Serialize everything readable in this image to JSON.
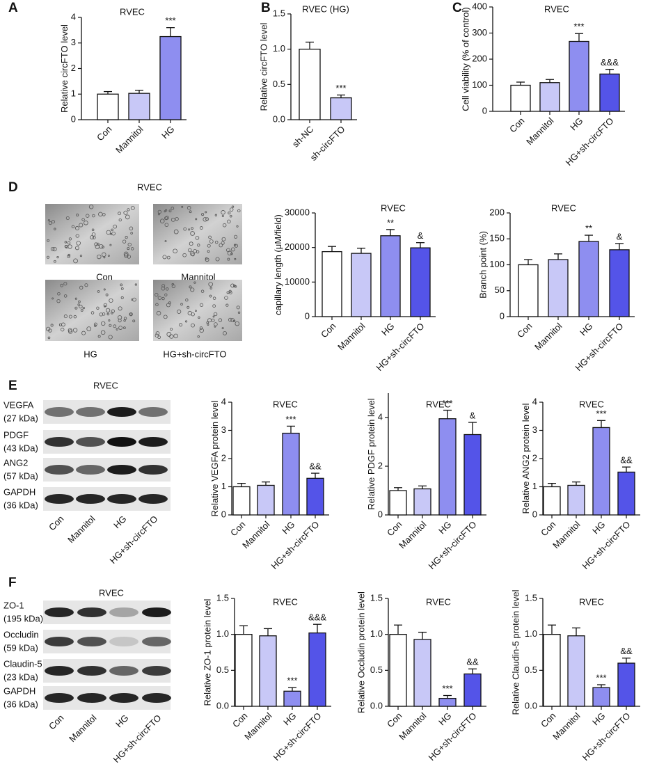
{
  "chart_data": [
    {
      "type": "bar",
      "panel": "A",
      "title": "RVEC",
      "ylabel": "Relative circFTO level",
      "categories": [
        "Con",
        "Mannitol",
        "HG"
      ],
      "values": [
        1.0,
        1.03,
        3.25
      ],
      "errors": [
        0.1,
        0.12,
        0.35
      ],
      "annotations": [
        null,
        null,
        "***"
      ],
      "colors": [
        "#ffffff",
        "#c8c8f7",
        "#8e8ef0"
      ],
      "ylim": [
        0,
        4
      ],
      "yticks": [
        0,
        1,
        2,
        3,
        4
      ]
    },
    {
      "type": "bar",
      "panel": "B",
      "title": "RVEC (HG)",
      "ylabel": "Relative circFTO level",
      "categories": [
        "sh-NC",
        "sh-circFTO"
      ],
      "values": [
        1.0,
        0.31
      ],
      "errors": [
        0.1,
        0.04
      ],
      "annotations": [
        null,
        "***"
      ],
      "colors": [
        "#ffffff",
        "#c8c8f7"
      ],
      "ylim": [
        0,
        1.5
      ],
      "yticks": [
        {
          "value": 0,
          "label": "0.0"
        },
        0.5,
        {
          "value": 1,
          "label": "1.0"
        },
        1.5
      ]
    },
    {
      "type": "bar",
      "panel": "C",
      "title": "RVEC",
      "ylabel": "Cell viability (% of control)",
      "categories": [
        "Con",
        "Mannitol",
        "HG",
        "HG+sh-circFTO"
      ],
      "values": [
        100,
        110,
        268,
        143
      ],
      "errors": [
        12,
        12,
        30,
        18
      ],
      "annotations": [
        null,
        null,
        "***",
        "&&&"
      ],
      "colors": [
        "#ffffff",
        "#c8c8f7",
        "#8e8ef0",
        "#5454e8"
      ],
      "ylim": [
        0,
        400
      ],
      "yticks": [
        0,
        100,
        200,
        300,
        400
      ]
    },
    {
      "type": "bar",
      "title": "RVEC",
      "ylabel": "capillary length (μM/field)",
      "categories": [
        "Con",
        "Mannitol",
        "HG",
        "HG+sh-circFTO"
      ],
      "values": [
        18800,
        18300,
        23400,
        19900
      ],
      "errors": [
        1500,
        1500,
        1800,
        1500
      ],
      "annotations": [
        null,
        null,
        "**",
        "&"
      ],
      "colors": [
        "#ffffff",
        "#c8c8f7",
        "#8e8ef0",
        "#5454e8"
      ],
      "ylim": [
        0,
        30000
      ],
      "yticks": [
        0,
        10000,
        20000,
        30000
      ]
    },
    {
      "type": "bar",
      "title": "RVEC",
      "ylabel": "Branch point (%)",
      "categories": [
        "Con",
        "Mannitol",
        "HG",
        "HG+sh-circFTO"
      ],
      "values": [
        100,
        110,
        145,
        129
      ],
      "errors": [
        10,
        11,
        12,
        12
      ],
      "annotations": [
        null,
        null,
        "**",
        "&"
      ],
      "colors": [
        "#ffffff",
        "#c8c8f7",
        "#8e8ef0",
        "#5454e8"
      ],
      "ylim": [
        0,
        200
      ],
      "yticks": [
        0,
        50,
        100,
        150,
        200
      ]
    },
    {
      "type": "bar",
      "title": "RVEC",
      "ylabel": "Relative VEGFA protein level",
      "categories": [
        "Con",
        "Mannitol",
        "HG",
        "HG+sh-circFTO"
      ],
      "values": [
        1.0,
        1.05,
        2.9,
        1.3
      ],
      "errors": [
        0.12,
        0.12,
        0.25,
        0.18
      ],
      "annotations": [
        null,
        null,
        "***",
        "&&"
      ],
      "colors": [
        "#ffffff",
        "#c8c8f7",
        "#8e8ef0",
        "#5454e8"
      ],
      "ylim": [
        0,
        4
      ],
      "yticks": [
        0,
        1,
        2,
        3,
        4
      ]
    },
    {
      "type": "bar",
      "title": "RVEC",
      "ylabel": "Relative PDGF protein level",
      "categories": [
        "Con",
        "Mannitol",
        "HG",
        "HG+sh-circFTO"
      ],
      "values": [
        1.0,
        1.07,
        3.95,
        3.3
      ],
      "errors": [
        0.12,
        0.12,
        0.35,
        0.5
      ],
      "annotations": [
        null,
        null,
        "***",
        "&"
      ],
      "colors": [
        "#ffffff",
        "#c8c8f7",
        "#8e8ef0",
        "#5454e8"
      ],
      "ylim": [
        0,
        5
      ],
      "yticks": [
        0,
        2,
        4
      ]
    },
    {
      "type": "bar",
      "title": "RVEC",
      "ylabel": "Relative ANG2 protein level",
      "categories": [
        "Con",
        "Mannitol",
        "HG",
        "HG+sh-circFTO"
      ],
      "values": [
        1.0,
        1.05,
        3.1,
        1.52
      ],
      "errors": [
        0.12,
        0.12,
        0.25,
        0.18
      ],
      "annotations": [
        null,
        null,
        "***",
        "&&"
      ],
      "colors": [
        "#ffffff",
        "#c8c8f7",
        "#8e8ef0",
        "#5454e8"
      ],
      "ylim": [
        0,
        4
      ],
      "yticks": [
        0,
        1,
        2,
        3,
        4
      ]
    },
    {
      "type": "bar",
      "title": "RVEC",
      "ylabel": "Relative ZO-1 protein level",
      "categories": [
        "Con",
        "Mannitol",
        "HG",
        "HG+sh-circFTO"
      ],
      "values": [
        1.0,
        0.98,
        0.21,
        1.02
      ],
      "errors": [
        0.12,
        0.1,
        0.05,
        0.12
      ],
      "annotations": [
        null,
        null,
        "***",
        "&&&"
      ],
      "colors": [
        "#ffffff",
        "#c8c8f7",
        "#8e8ef0",
        "#5454e8"
      ],
      "ylim": [
        0,
        1.5
      ],
      "yticks": [
        {
          "value": 0,
          "label": "0.0"
        },
        0.5,
        {
          "value": 1,
          "label": "1.0"
        },
        1.5
      ]
    },
    {
      "type": "bar",
      "title": "RVEC",
      "ylabel": "Relative Occludin protein level",
      "categories": [
        "Con",
        "Mannitol",
        "HG",
        "HG+sh-circFTO"
      ],
      "values": [
        1.0,
        0.93,
        0.11,
        0.45
      ],
      "errors": [
        0.13,
        0.1,
        0.04,
        0.07
      ],
      "annotations": [
        null,
        null,
        "***",
        "&&"
      ],
      "colors": [
        "#ffffff",
        "#c8c8f7",
        "#8e8ef0",
        "#5454e8"
      ],
      "ylim": [
        0,
        1.5
      ],
      "yticks": [
        {
          "value": 0,
          "label": "0.0"
        },
        0.5,
        {
          "value": 1,
          "label": "1.0"
        },
        1.5
      ]
    },
    {
      "type": "bar",
      "title": "RVEC",
      "ylabel": "Relative Claudin-5 protein level",
      "categories": [
        "Con",
        "Mannitol",
        "HG",
        "HG+sh-circFTO"
      ],
      "values": [
        1.0,
        0.98,
        0.26,
        0.6
      ],
      "errors": [
        0.13,
        0.11,
        0.04,
        0.07
      ],
      "annotations": [
        null,
        null,
        "***",
        "&&"
      ],
      "colors": [
        "#ffffff",
        "#c8c8f7",
        "#8e8ef0",
        "#5454e8"
      ],
      "ylim": [
        0,
        1.5
      ],
      "yticks": [
        {
          "value": 0,
          "label": "0.0"
        },
        0.5,
        {
          "value": 1,
          "label": "1.0"
        },
        1.5
      ]
    }
  ],
  "micrographs": {
    "panel": "D",
    "title": "RVEC",
    "labels": [
      "Con",
      "Mannitol",
      "HG",
      "HG+sh-circFTO"
    ]
  },
  "blots": [
    {
      "panel": "E",
      "title": "RVEC",
      "proteins": [
        {
          "name": "VEGFA",
          "size": "(27 kDa)"
        },
        {
          "name": "PDGF",
          "size": "(43 kDa)"
        },
        {
          "name": "ANG2",
          "size": "(57 kDa)"
        },
        {
          "name": "GAPDH",
          "size": "(36 kDa)"
        }
      ],
      "lanes": [
        "Con",
        "Mannitol",
        "HG",
        "HG+sh-circFTO"
      ]
    },
    {
      "panel": "F",
      "title": "RVEC",
      "proteins": [
        {
          "name": "ZO-1",
          "size": "(195 kDa)"
        },
        {
          "name": "Occludin",
          "size": "(59 kDa)"
        },
        {
          "name": "Claudin-5",
          "size": "(23 kDa)"
        },
        {
          "name": "GAPDH",
          "size": "(36 kDa)"
        }
      ],
      "lanes": [
        "Con",
        "Mannitol",
        "HG",
        "HG+sh-circFTO"
      ]
    }
  ]
}
